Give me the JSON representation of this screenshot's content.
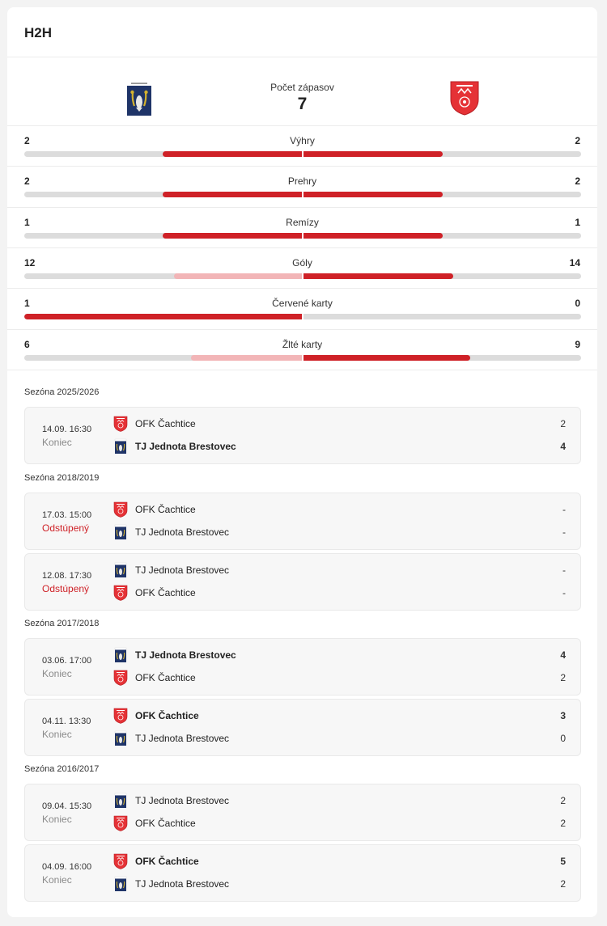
{
  "title": "H2H",
  "summary": {
    "count_label": "Počet zápasov",
    "count_value": "7"
  },
  "colors": {
    "accent": "#cf2127",
    "accent_light": "#f2b5b7",
    "track": "#dcdcdc"
  },
  "stats": [
    {
      "label": "Výhry",
      "left": "2",
      "right": "2",
      "left_fill": 0.5,
      "right_fill": 0.5,
      "left_strong": true,
      "right_strong": true
    },
    {
      "label": "Prehry",
      "left": "2",
      "right": "2",
      "left_fill": 0.5,
      "right_fill": 0.5,
      "left_strong": true,
      "right_strong": true
    },
    {
      "label": "Remízy",
      "left": "1",
      "right": "1",
      "left_fill": 0.5,
      "right_fill": 0.5,
      "left_strong": true,
      "right_strong": true
    },
    {
      "label": "Góly",
      "left": "12",
      "right": "14",
      "left_fill": 0.46,
      "right_fill": 0.54,
      "left_strong": false,
      "right_strong": true
    },
    {
      "label": "Červené karty",
      "left": "1",
      "right": "0",
      "left_fill": 1.0,
      "right_fill": 0,
      "left_strong": true,
      "right_strong": false
    },
    {
      "label": "Žlté karty",
      "left": "6",
      "right": "9",
      "left_fill": 0.4,
      "right_fill": 0.6,
      "left_strong": false,
      "right_strong": true
    }
  ],
  "seasons": [
    {
      "name": "Sezóna 2025/2026",
      "matches": [
        {
          "date": "14.09. 16:30",
          "status": "Koniec",
          "status_red": false,
          "teams": [
            {
              "name": "OFK Čachtice",
              "logo": "cachtice-logo",
              "score": "2",
              "bold": false
            },
            {
              "name": "TJ Jednota Brestovec",
              "logo": "brestovec-logo",
              "score": "4",
              "bold": true
            }
          ]
        }
      ]
    },
    {
      "name": "Sezóna 2018/2019",
      "matches": [
        {
          "date": "17.03. 15:00",
          "status": "Odstúpený",
          "status_red": true,
          "teams": [
            {
              "name": "OFK Čachtice",
              "logo": "cachtice-logo",
              "score": "-",
              "bold": false
            },
            {
              "name": "TJ Jednota Brestovec",
              "logo": "brestovec-logo",
              "score": "-",
              "bold": false
            }
          ]
        },
        {
          "date": "12.08. 17:30",
          "status": "Odstúpený",
          "status_red": true,
          "teams": [
            {
              "name": "TJ Jednota Brestovec",
              "logo": "brestovec-logo",
              "score": "-",
              "bold": false
            },
            {
              "name": "OFK Čachtice",
              "logo": "cachtice-logo",
              "score": "-",
              "bold": false
            }
          ]
        }
      ]
    },
    {
      "name": "Sezóna 2017/2018",
      "matches": [
        {
          "date": "03.06. 17:00",
          "status": "Koniec",
          "status_red": false,
          "teams": [
            {
              "name": "TJ Jednota Brestovec",
              "logo": "brestovec-logo",
              "score": "4",
              "bold": true
            },
            {
              "name": "OFK Čachtice",
              "logo": "cachtice-logo",
              "score": "2",
              "bold": false
            }
          ]
        },
        {
          "date": "04.11. 13:30",
          "status": "Koniec",
          "status_red": false,
          "teams": [
            {
              "name": "OFK Čachtice",
              "logo": "cachtice-logo",
              "score": "3",
              "bold": true
            },
            {
              "name": "TJ Jednota Brestovec",
              "logo": "brestovec-logo",
              "score": "0",
              "bold": false
            }
          ]
        }
      ]
    },
    {
      "name": "Sezóna 2016/2017",
      "matches": [
        {
          "date": "09.04. 15:30",
          "status": "Koniec",
          "status_red": false,
          "teams": [
            {
              "name": "TJ Jednota Brestovec",
              "logo": "brestovec-logo",
              "score": "2",
              "bold": false
            },
            {
              "name": "OFK Čachtice",
              "logo": "cachtice-logo",
              "score": "2",
              "bold": false
            }
          ]
        },
        {
          "date": "04.09. 16:00",
          "status": "Koniec",
          "status_red": false,
          "teams": [
            {
              "name": "OFK Čachtice",
              "logo": "cachtice-logo",
              "score": "5",
              "bold": true
            },
            {
              "name": "TJ Jednota Brestovec",
              "logo": "brestovec-logo",
              "score": "2",
              "bold": false
            }
          ]
        }
      ]
    }
  ]
}
